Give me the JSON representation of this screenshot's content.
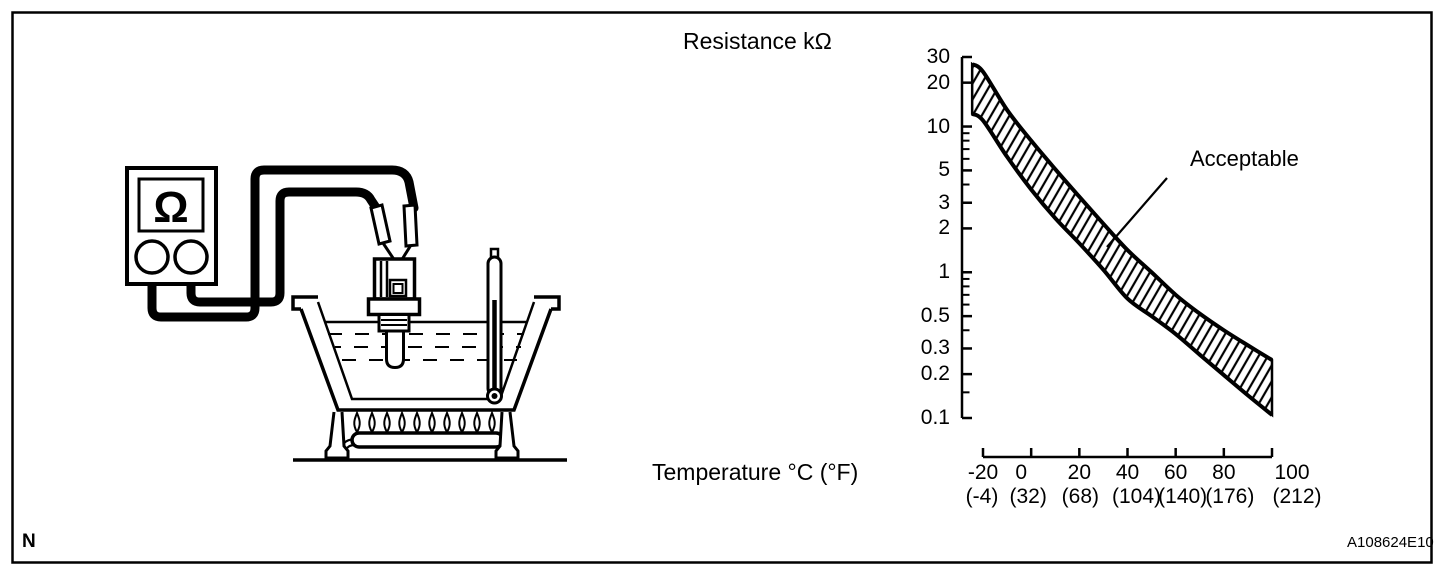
{
  "page": {
    "corner_label": "N",
    "figure_code": "A108624E10",
    "background_color": "#ffffff",
    "line_color": "#000000"
  },
  "illustration": {
    "meter_symbol": "Ω",
    "description": "Ohmmeter connected by test leads to a coolant temperature sensor suspended in a water bath heated by a gas burner, with a thermometer in the water"
  },
  "chart_data": {
    "type": "area",
    "title": "Resistance kΩ",
    "xlabel": "Temperature °C (°F)",
    "legend_position": "none",
    "grid": false,
    "x_axis": {
      "range_c": [
        -20,
        100
      ],
      "ticks_c": [
        -20,
        0,
        20,
        40,
        60,
        80,
        100
      ],
      "tick_labels_c": [
        "-20",
        "0",
        "20",
        "40",
        "60",
        "80",
        "100"
      ],
      "tick_labels_f": [
        "(-4)",
        "(32)",
        "(68)",
        "(104)",
        "(140)",
        "(176)",
        "(212)"
      ]
    },
    "y_axis": {
      "scale": "log",
      "range_kohm": [
        0.1,
        30
      ],
      "major_ticks": [
        30,
        20,
        10,
        5,
        3,
        2,
        1,
        0.5,
        0.3,
        0.2,
        0.1
      ],
      "major_tick_labels": [
        "30",
        "20",
        "10",
        "5",
        "3",
        "2",
        "1",
        "0.5",
        "0.3",
        "0.2",
        "0.1"
      ],
      "minor_ticks": [
        9,
        8,
        7,
        6,
        4,
        0.9,
        0.8,
        0.7,
        0.6,
        0.4,
        0.15
      ]
    },
    "band": {
      "label": "Acceptable",
      "temps_c": [
        -24.5,
        -20,
        -10,
        0,
        10,
        20,
        30,
        40,
        50,
        60,
        70,
        80,
        90,
        100
      ],
      "upper_kohm": [
        26.8,
        23.8,
        13,
        8.0,
        5.1,
        3.3,
        2.15,
        1.42,
        1.0,
        0.7,
        0.52,
        0.4,
        0.315,
        0.25
      ],
      "lower_kohm": [
        12.2,
        11,
        6.2,
        3.7,
        2.35,
        1.58,
        1.04,
        0.66,
        0.5,
        0.377,
        0.272,
        0.197,
        0.143,
        0.105
      ]
    }
  }
}
